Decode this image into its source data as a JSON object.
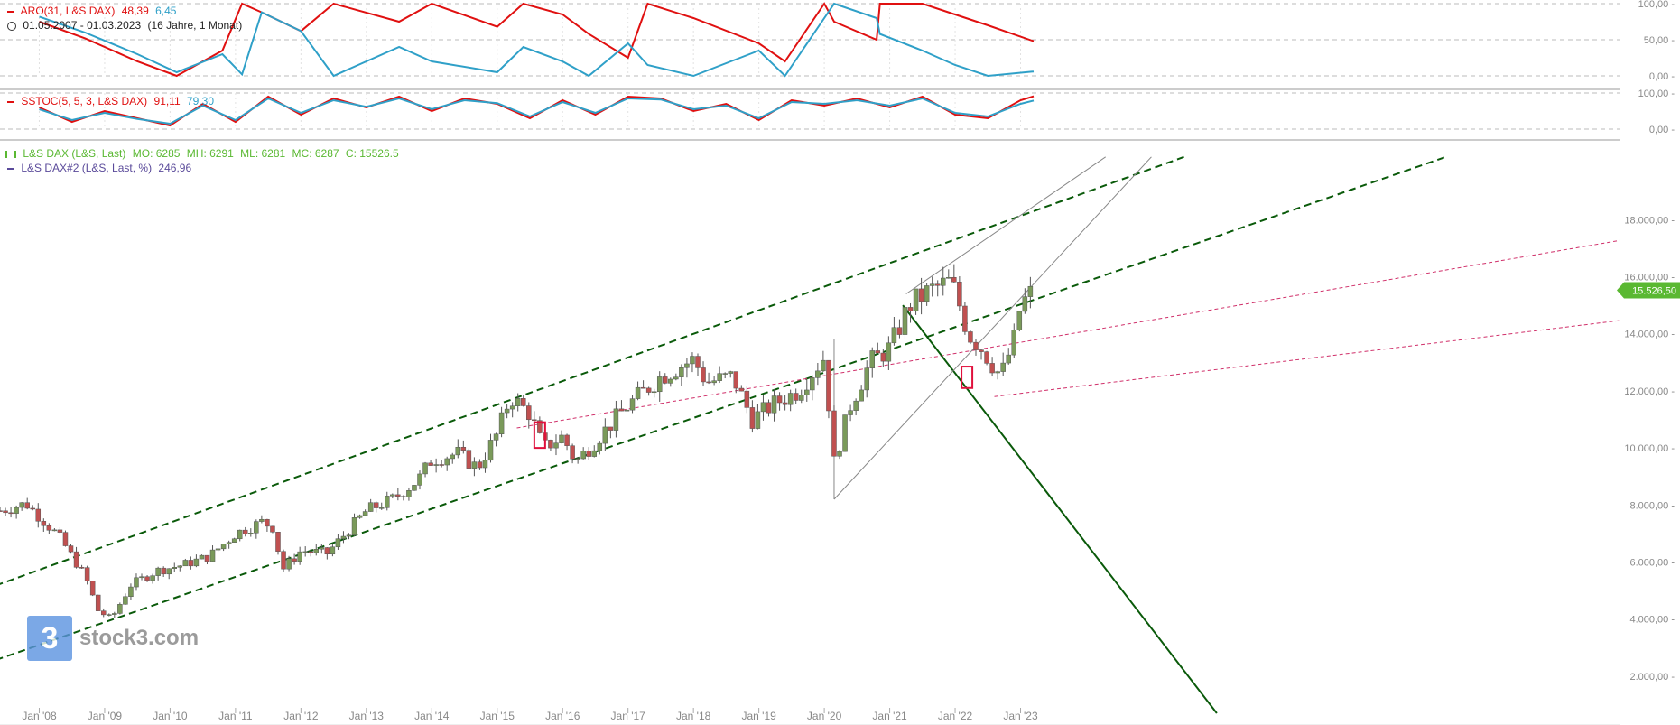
{
  "colors": {
    "red": "#e01010",
    "blue": "#2fa0c8",
    "green_dark": "#0a5a0a",
    "green_legend": "#5ab832",
    "purple": "#5a4a9a",
    "pink": "#d0306a",
    "gray_line": "#888888",
    "up_candle": "#7a9a5a",
    "down_candle": "#c05050",
    "last_price_bg": "#5ab832"
  },
  "icons": [
    "clock-icon",
    "candle-icon",
    "line-swatch-icon"
  ],
  "logo": {
    "mark": "3",
    "text": "stock3.com"
  },
  "chart_data": [
    {
      "type": "line",
      "panel": "aroon",
      "indicator_label": "ARO(31, L&S DAX)",
      "value_primary": "48,39",
      "value_secondary": "6,45",
      "date_range": "01.05.2007 - 01.03.2023",
      "span": "(16 Jahre, 1 Monat)",
      "ylim": [
        0,
        100
      ],
      "yticks": [
        "100,00",
        "50,00",
        "0,00"
      ],
      "x": [
        2008.0,
        2008.7,
        2009.5,
        2010.1,
        2010.8,
        2011.1,
        2011.4,
        2012.0,
        2012.5,
        2013.5,
        2014.0,
        2015.0,
        2015.4,
        2016.0,
        2016.4,
        2017.0,
        2017.3,
        2018.0,
        2019.0,
        2019.4,
        2020.0,
        2020.15,
        2020.8,
        2020.85,
        2021.5,
        2022.0,
        2022.5,
        2023.2
      ],
      "series": [
        {
          "name": "ARO(31, L&S DAX)",
          "values": [
            75,
            52,
            20,
            0,
            35,
            100,
            88,
            62,
            100,
            75,
            100,
            68,
            100,
            85,
            58,
            25,
            100,
            80,
            45,
            20,
            100,
            75,
            50,
            100,
            100,
            85,
            70,
            48
          ]
        },
        {
          "name": "",
          "values": [
            82,
            60,
            30,
            5,
            30,
            2,
            88,
            62,
            0,
            40,
            20,
            5,
            40,
            20,
            0,
            45,
            15,
            0,
            35,
            0,
            80,
            100,
            80,
            58,
            35,
            15,
            0,
            6
          ]
        }
      ]
    },
    {
      "type": "line",
      "panel": "stochastic",
      "indicator_label": "SSTOC(5, 5, 3, L&S DAX)",
      "value_primary": "91,11",
      "value_secondary": "79,30",
      "ylim": [
        0,
        100
      ],
      "yticks": [
        "100,00",
        "0,00"
      ],
      "x": [
        2008.0,
        2008.5,
        2009.0,
        2009.5,
        2010.0,
        2010.5,
        2011.0,
        2011.5,
        2012.0,
        2012.5,
        2013.0,
        2013.5,
        2014.0,
        2014.5,
        2015.0,
        2015.5,
        2016.0,
        2016.5,
        2017.0,
        2017.5,
        2018.0,
        2018.5,
        2019.0,
        2019.5,
        2020.0,
        2020.5,
        2021.0,
        2021.5,
        2022.0,
        2022.5,
        2023.0,
        2023.2
      ],
      "series": [
        {
          "name": "SSTOC(5, 5, 3, L&S DAX)",
          "values": [
            60,
            20,
            50,
            30,
            10,
            70,
            20,
            90,
            40,
            85,
            60,
            90,
            50,
            85,
            70,
            30,
            80,
            40,
            90,
            85,
            50,
            70,
            25,
            80,
            65,
            85,
            60,
            90,
            40,
            30,
            80,
            91
          ]
        },
        {
          "name": "",
          "values": [
            55,
            25,
            45,
            28,
            15,
            65,
            25,
            85,
            45,
            80,
            62,
            85,
            55,
            80,
            72,
            35,
            75,
            45,
            85,
            82,
            55,
            65,
            30,
            75,
            70,
            80,
            65,
            85,
            45,
            35,
            70,
            79
          ]
        }
      ]
    },
    {
      "type": "candlestick",
      "panel": "price",
      "title": "L&S DAX (L&S, Last)",
      "ohlc_readout": {
        "open": "MO: 6285",
        "high": "MH: 6291",
        "low": "ML: 6281",
        "close": "MC: 6287",
        "last": "C: 15526.5"
      },
      "second_series_label": "L&S DAX#2 (L&S, Last, %)",
      "second_series_value": "246,96",
      "last_price_label": "15.526,50",
      "last_price": 15526.5,
      "ylim": [
        700,
        20700
      ],
      "yticks": [
        2000,
        4000,
        6000,
        8000,
        10000,
        12000,
        14000,
        16000,
        18000
      ],
      "ytick_labels": [
        "2.000,00",
        "4.000,00",
        "6.000,00",
        "8.000,00",
        "10.000,00",
        "12.000,00",
        "14.000,00",
        "16.000,00",
        "18.000,00"
      ],
      "xticks": [
        2008,
        2009,
        2010,
        2011,
        2012,
        2013,
        2014,
        2015,
        2016,
        2017,
        2018,
        2019,
        2020,
        2021,
        2022,
        2023
      ],
      "xtick_labels": [
        "Jan '08",
        "Jan '09",
        "Jan '10",
        "Jan '11",
        "Jan '12",
        "Jan '13",
        "Jan '14",
        "Jan '15",
        "Jan '16",
        "Jan '17",
        "Jan '18",
        "Jan '19",
        "Jan '20",
        "Jan '21",
        "Jan '22",
        "Jan '23"
      ],
      "x_range": [
        2007.4,
        2023.2
      ],
      "close_path": [
        [
          2007.4,
          7800
        ],
        [
          2007.8,
          8050
        ],
        [
          2008.0,
          7600
        ],
        [
          2008.3,
          6900
        ],
        [
          2008.7,
          5500
        ],
        [
          2008.9,
          4300
        ],
        [
          2009.1,
          4000
        ],
        [
          2009.4,
          5200
        ],
        [
          2009.8,
          5700
        ],
        [
          2010.2,
          5900
        ],
        [
          2010.6,
          6200
        ],
        [
          2011.0,
          7000
        ],
        [
          2011.4,
          7400
        ],
        [
          2011.6,
          7200
        ],
        [
          2011.7,
          5700
        ],
        [
          2012.0,
          6400
        ],
        [
          2012.4,
          6300
        ],
        [
          2012.8,
          7300
        ],
        [
          2013.0,
          7800
        ],
        [
          2013.4,
          8200
        ],
        [
          2013.8,
          8900
        ],
        [
          2014.0,
          9600
        ],
        [
          2014.4,
          9800
        ],
        [
          2014.7,
          9300
        ],
        [
          2015.0,
          10500
        ],
        [
          2015.2,
          11800
        ],
        [
          2015.5,
          11200
        ],
        [
          2015.7,
          10000
        ],
        [
          2016.0,
          10400
        ],
        [
          2016.2,
          9500
        ],
        [
          2016.6,
          10500
        ],
        [
          2017.0,
          11500
        ],
        [
          2017.5,
          12500
        ],
        [
          2018.0,
          13100
        ],
        [
          2018.2,
          12300
        ],
        [
          2018.6,
          12500
        ],
        [
          2018.9,
          11000
        ],
        [
          2019.2,
          11500
        ],
        [
          2019.6,
          12000
        ],
        [
          2020.0,
          13200
        ],
        [
          2020.15,
          9500
        ],
        [
          2020.4,
          11500
        ],
        [
          2020.7,
          13000
        ],
        [
          2021.0,
          13500
        ],
        [
          2021.3,
          15000
        ],
        [
          2021.6,
          15500
        ],
        [
          2021.9,
          15800
        ],
        [
          2022.0,
          15500
        ],
        [
          2022.2,
          14000
        ],
        [
          2022.4,
          13500
        ],
        [
          2022.7,
          12500
        ],
        [
          2022.9,
          13800
        ],
        [
          2023.0,
          15000
        ],
        [
          2023.2,
          15526
        ]
      ],
      "trendlines": [
        {
          "kind": "channel-upper",
          "style": "dashed",
          "from": [
            2007.0,
            4900
          ],
          "to": [
            2025.5,
            20200
          ]
        },
        {
          "kind": "channel-lower",
          "style": "dashed",
          "from": [
            2007.0,
            2300
          ],
          "to": [
            2029.5,
            20200
          ]
        },
        {
          "kind": "support-resistance",
          "style": "dotted",
          "from": [
            2015.3,
            10700
          ],
          "to": [
            2033.0,
            17600
          ]
        },
        {
          "kind": "support-resistance",
          "style": "dotted",
          "from": [
            2022.6,
            11800
          ],
          "to": [
            2033.0,
            14700
          ]
        },
        {
          "kind": "steep-down",
          "style": "solid",
          "from": [
            2021.2,
            15000
          ],
          "to": [
            2026.0,
            700
          ]
        },
        {
          "kind": "wedge-upper",
          "style": "solid-thin",
          "from": [
            2021.25,
            15400
          ],
          "to": [
            2024.3,
            20200
          ]
        },
        {
          "kind": "wedge-lower",
          "style": "solid-thin",
          "from": [
            2020.15,
            8200
          ],
          "to": [
            2025.0,
            20200
          ]
        },
        {
          "kind": "wedge-left",
          "style": "solid-thin",
          "from": [
            2020.15,
            8200
          ],
          "to": [
            2020.15,
            13800
          ]
        }
      ],
      "markers": [
        {
          "kind": "highlight-box",
          "x": 2015.65,
          "y_high": 10900,
          "y_low": 10000
        },
        {
          "kind": "highlight-box",
          "x": 2022.18,
          "y_high": 12850,
          "y_low": 12100
        }
      ]
    }
  ]
}
